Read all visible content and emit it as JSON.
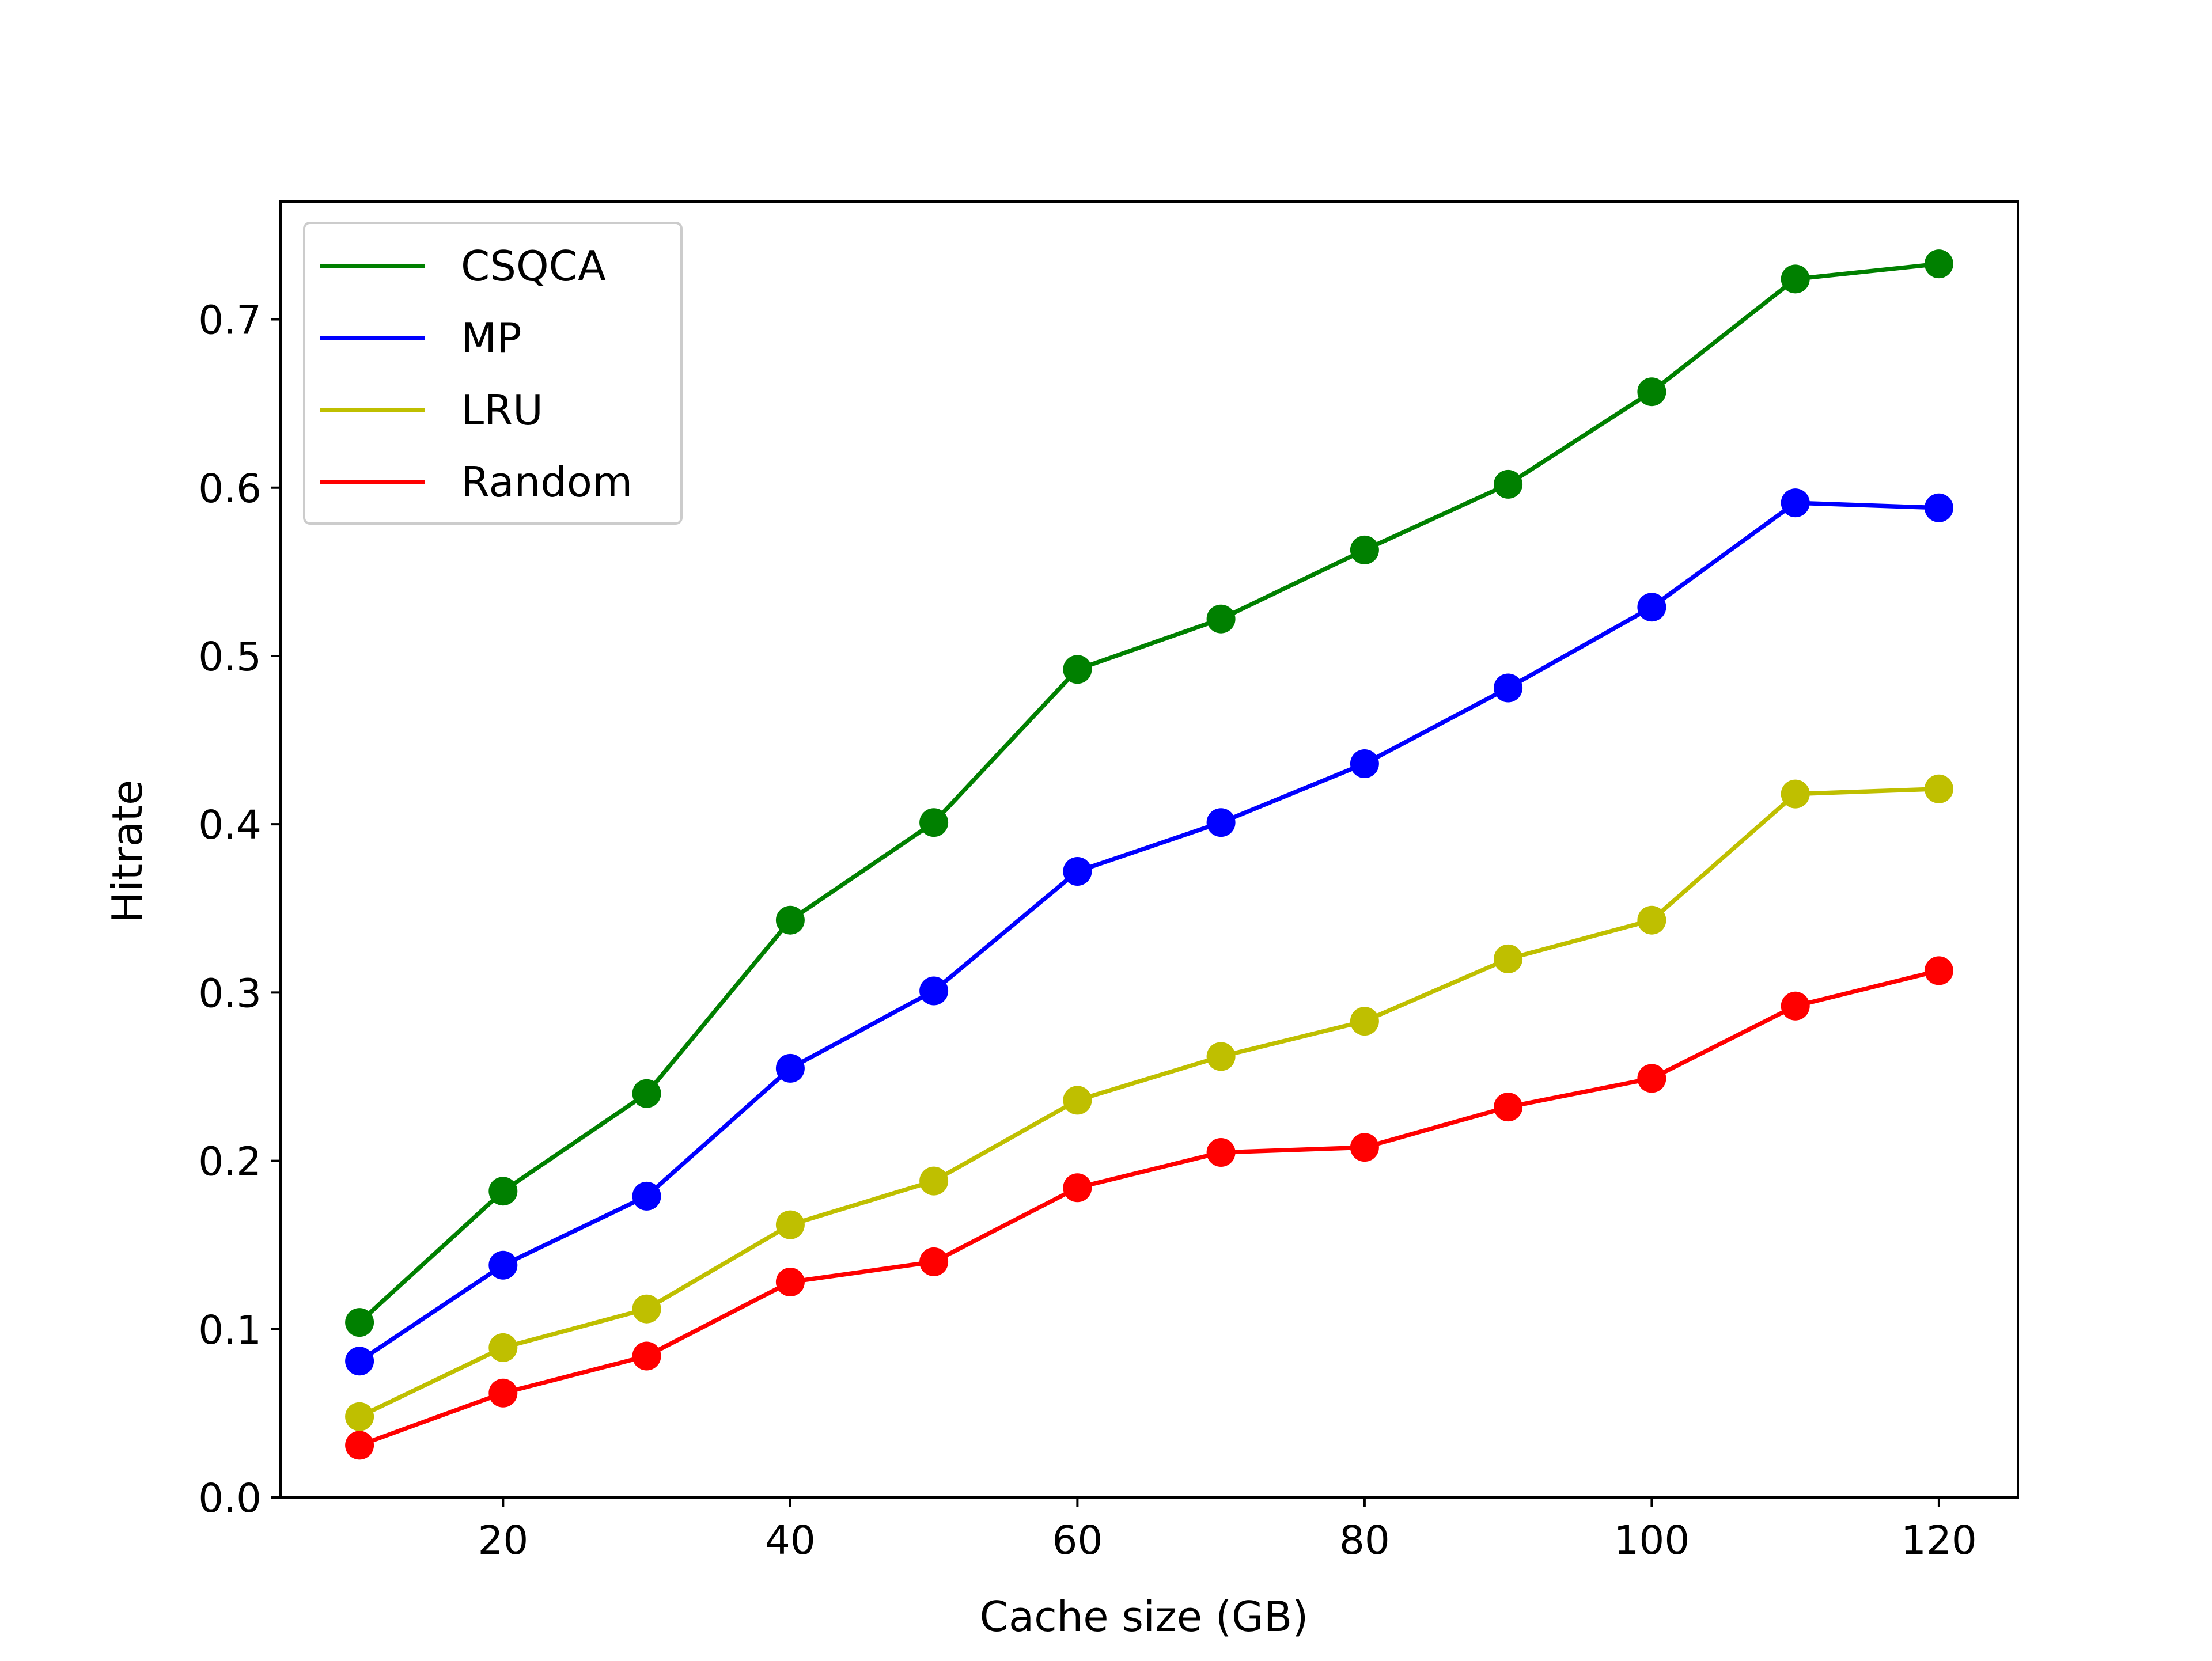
{
  "chart_data": {
    "type": "line",
    "title": "",
    "xlabel": "Cache size (GB)",
    "ylabel": "Hitrate",
    "x": [
      10,
      20,
      30,
      40,
      50,
      60,
      70,
      80,
      90,
      100,
      110,
      120
    ],
    "xlim": [
      4.5,
      125.5
    ],
    "ylim": [
      0.0,
      0.77
    ],
    "xticks": [
      20,
      40,
      60,
      80,
      100,
      120
    ],
    "xtick_labels": [
      "20",
      "40",
      "60",
      "80",
      "100",
      "120"
    ],
    "yticks": [
      0.0,
      0.1,
      0.2,
      0.3,
      0.4,
      0.5,
      0.6,
      0.7
    ],
    "ytick_labels": [
      "0.0",
      "0.1",
      "0.2",
      "0.3",
      "0.4",
      "0.5",
      "0.6",
      "0.7"
    ],
    "grid": false,
    "legend_position": "top-left",
    "markers": true,
    "series": [
      {
        "name": "CSQCA",
        "color": "#008000",
        "values": [
          0.104,
          0.182,
          0.24,
          0.343,
          0.401,
          0.492,
          0.522,
          0.563,
          0.602,
          0.657,
          0.724,
          0.733
        ]
      },
      {
        "name": "MP",
        "color": "#0000ff",
        "values": [
          0.081,
          0.138,
          0.179,
          0.255,
          0.301,
          0.372,
          0.401,
          0.436,
          0.481,
          0.529,
          0.591,
          0.588
        ]
      },
      {
        "name": "LRU",
        "color": "#bfbf00",
        "values": [
          0.048,
          0.089,
          0.112,
          0.162,
          0.188,
          0.236,
          0.262,
          0.283,
          0.32,
          0.343,
          0.418,
          0.421
        ]
      },
      {
        "name": "Random",
        "color": "#ff0000",
        "values": [
          0.031,
          0.062,
          0.084,
          0.128,
          0.14,
          0.184,
          0.205,
          0.208,
          0.232,
          0.249,
          0.292,
          0.313
        ]
      }
    ]
  }
}
